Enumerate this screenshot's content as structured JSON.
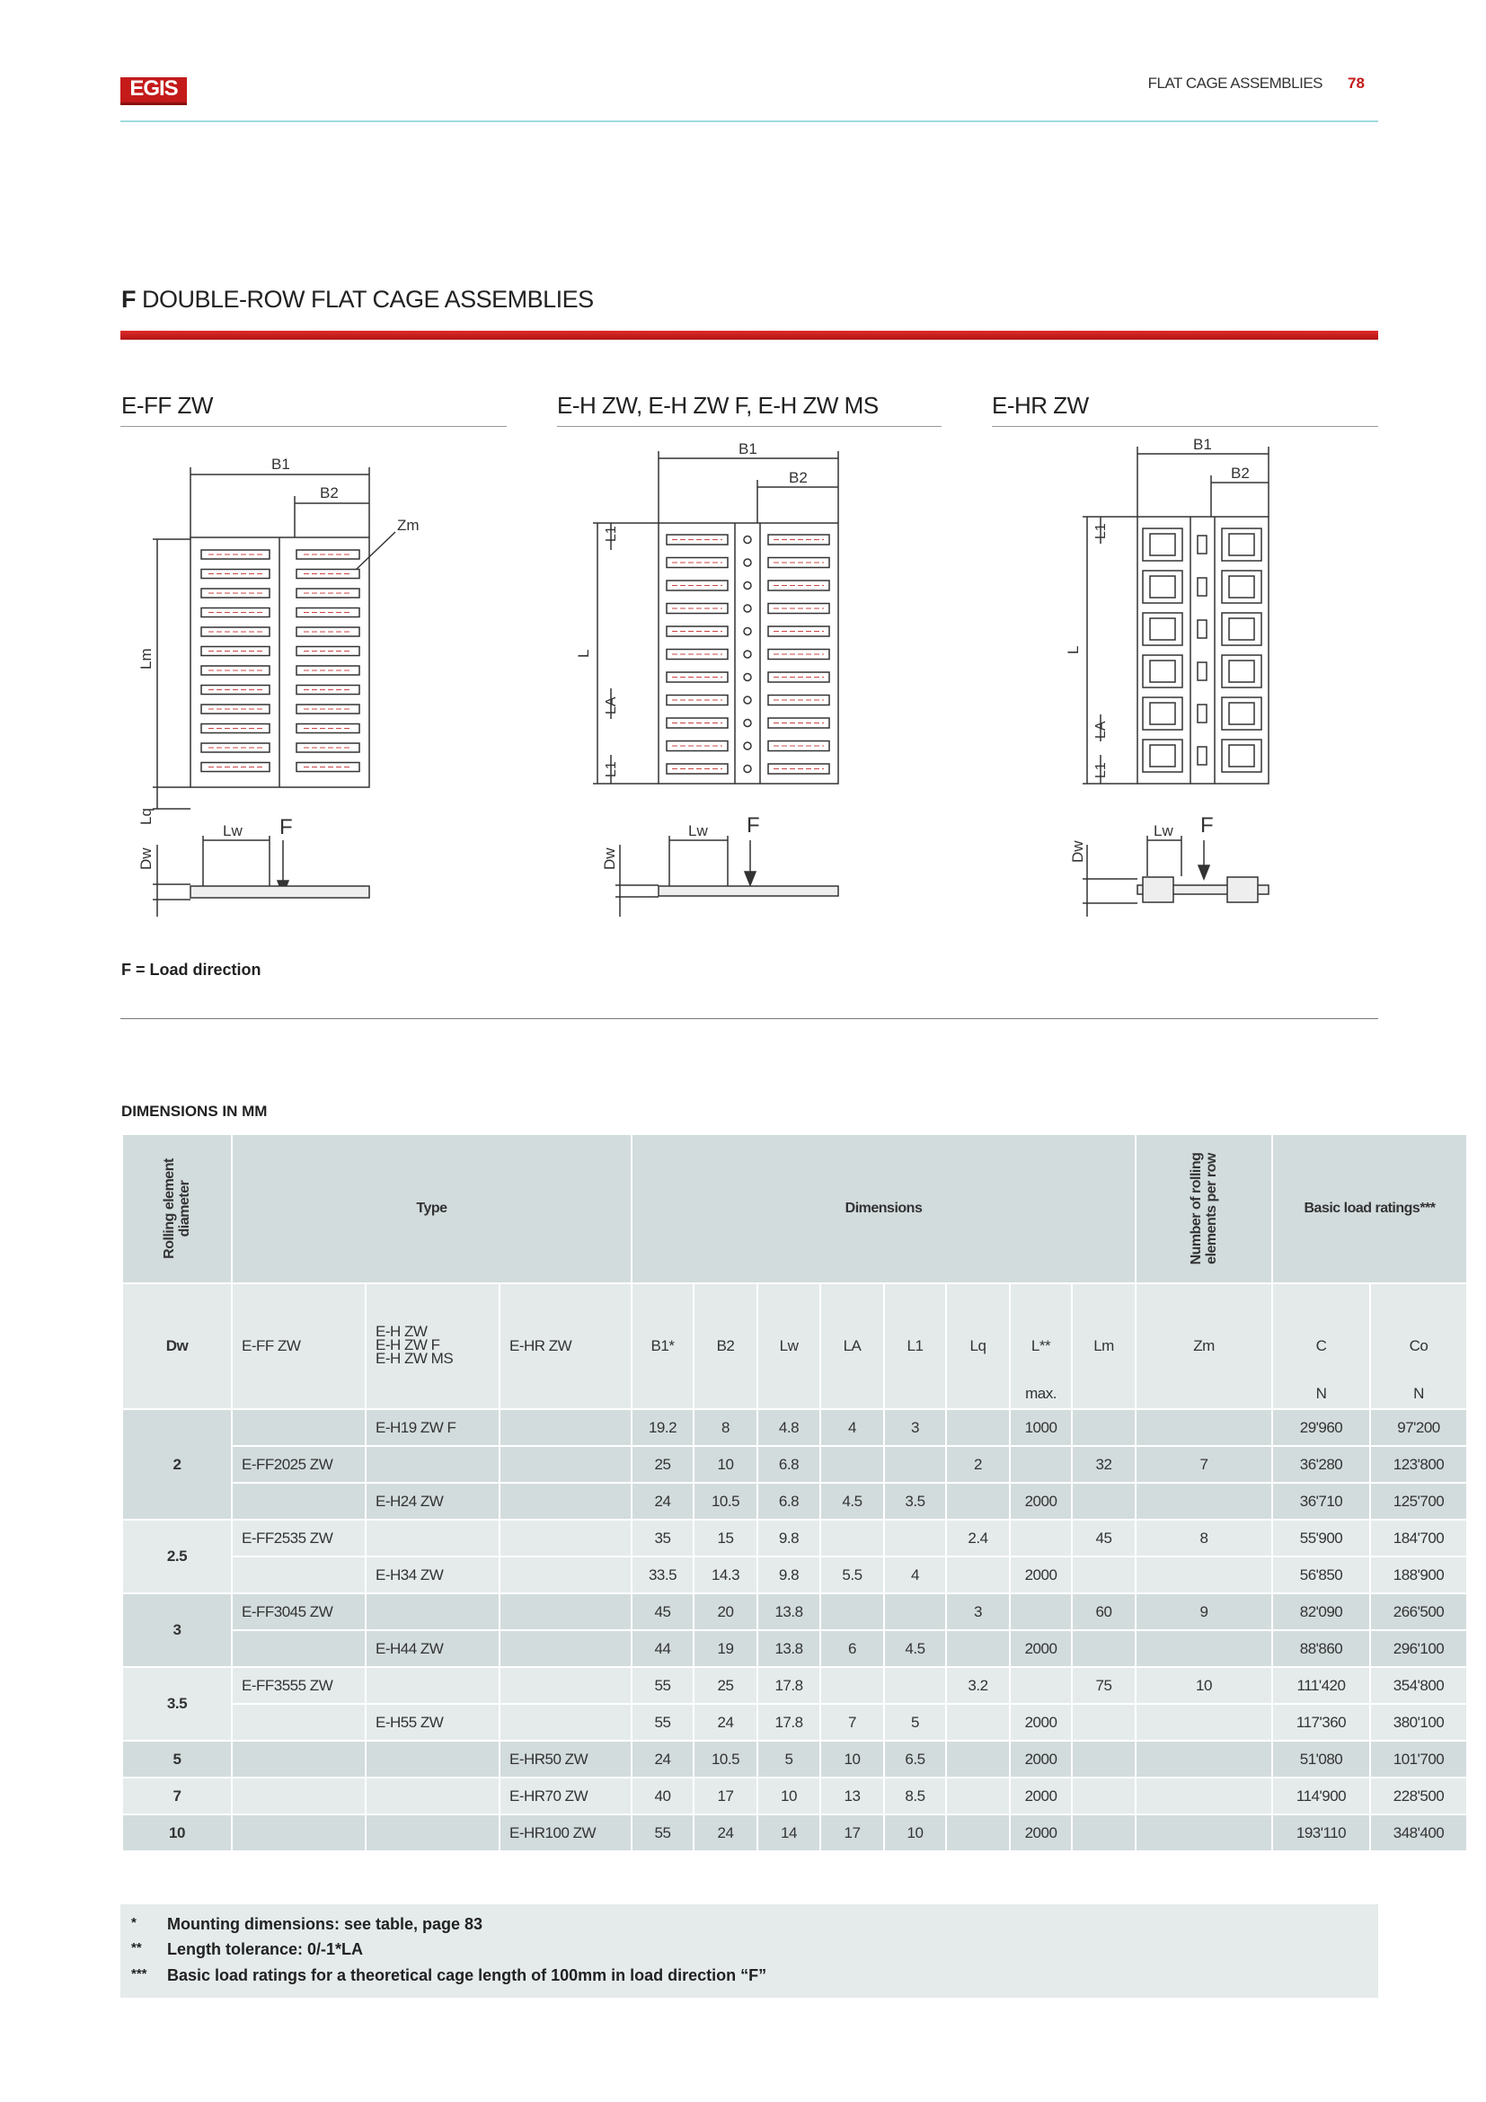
{
  "header": {
    "logo": "EGIS",
    "section": "FLAT CAGE ASSEMBLIES",
    "page": "78"
  },
  "title": {
    "letter": "F",
    "text": "DOUBLE-ROW FLAT CAGE ASSEMBLIES"
  },
  "diagrams": [
    {
      "title": "E-FF ZW",
      "labels": {
        "B1": "B1",
        "B2": "B2",
        "Zm": "Zm",
        "Lm": "Lm",
        "Lq": "Lq",
        "Lw": "Lw",
        "F": "F",
        "Dw": "Dw"
      }
    },
    {
      "title": "E-H ZW, E-H ZW F, E-H ZW MS",
      "labels": {
        "B1": "B1",
        "B2": "B2",
        "L1": "L1",
        "L": "L",
        "LA": "LA",
        "L1b": "L1",
        "Lw": "Lw",
        "F": "F",
        "Dw": "Dw"
      }
    },
    {
      "title": "E-HR ZW",
      "labels": {
        "B1": "B1",
        "B2": "B2",
        "L1": "L1",
        "L": "L",
        "LA": "LA",
        "L1b": "L1",
        "Lw": "Lw",
        "F": "F",
        "Dw": "Dw"
      }
    }
  ],
  "load_note": "F = Load direction",
  "table": {
    "caption": "DIMENSIONS IN MM",
    "groups": {
      "rolling": "Rolling element diameter",
      "type": "Type",
      "dimensions": "Dimensions",
      "number": "Number of rolling elements per row",
      "ratings": "Basic load ratings***"
    },
    "columns": [
      "Dw",
      "E-FF ZW",
      "E-H ZW\nE-H ZW F\nE-H ZW MS",
      "E-HR ZW",
      "B1*",
      "B2",
      "Lw",
      "LA",
      "L1",
      "Lq",
      "L**",
      "Lm",
      "Zm",
      "C",
      "Co"
    ],
    "units": {
      "L": "max.",
      "C": "N",
      "Co": "N"
    },
    "groups_rows": [
      {
        "dw": "2",
        "shade": "dark",
        "rows": [
          [
            "",
            "E-H19 ZW F",
            "",
            "19.2",
            "8",
            "4.8",
            "4",
            "3",
            "",
            "1000",
            "",
            "",
            "29'960",
            "97'200"
          ],
          [
            "E-FF2025 ZW",
            "",
            "",
            "25",
            "10",
            "6.8",
            "",
            "",
            "2",
            "",
            "32",
            "7",
            "36'280",
            "123'800"
          ],
          [
            "",
            "E-H24 ZW",
            "",
            "24",
            "10.5",
            "6.8",
            "4.5",
            "3.5",
            "",
            "2000",
            "",
            "",
            "36'710",
            "125'700"
          ]
        ]
      },
      {
        "dw": "2.5",
        "shade": "light",
        "rows": [
          [
            "E-FF2535 ZW",
            "",
            "",
            "35",
            "15",
            "9.8",
            "",
            "",
            "2.4",
            "",
            "45",
            "8",
            "55'900",
            "184'700"
          ],
          [
            "",
            "E-H34 ZW",
            "",
            "33.5",
            "14.3",
            "9.8",
            "5.5",
            "4",
            "",
            "2000",
            "",
            "",
            "56'850",
            "188'900"
          ]
        ]
      },
      {
        "dw": "3",
        "shade": "dark",
        "rows": [
          [
            "E-FF3045 ZW",
            "",
            "",
            "45",
            "20",
            "13.8",
            "",
            "",
            "3",
            "",
            "60",
            "9",
            "82'090",
            "266'500"
          ],
          [
            "",
            "E-H44 ZW",
            "",
            "44",
            "19",
            "13.8",
            "6",
            "4.5",
            "",
            "2000",
            "",
            "",
            "88'860",
            "296'100"
          ]
        ]
      },
      {
        "dw": "3.5",
        "shade": "light",
        "rows": [
          [
            "E-FF3555 ZW",
            "",
            "",
            "55",
            "25",
            "17.8",
            "",
            "",
            "3.2",
            "",
            "75",
            "10",
            "111'420",
            "354'800"
          ],
          [
            "",
            "E-H55 ZW",
            "",
            "55",
            "24",
            "17.8",
            "7",
            "5",
            "",
            "2000",
            "",
            "",
            "117'360",
            "380'100"
          ]
        ]
      },
      {
        "dw": "5",
        "shade": "dark",
        "rows": [
          [
            "",
            "",
            "E-HR50 ZW",
            "24",
            "10.5",
            "5",
            "10",
            "6.5",
            "",
            "2000",
            "",
            "",
            "51'080",
            "101'700"
          ]
        ]
      },
      {
        "dw": "7",
        "shade": "light",
        "rows": [
          [
            "",
            "",
            "E-HR70 ZW",
            "40",
            "17",
            "10",
            "13",
            "8.5",
            "",
            "2000",
            "",
            "",
            "114'900",
            "228'500"
          ]
        ]
      },
      {
        "dw": "10",
        "shade": "dark",
        "rows": [
          [
            "",
            "",
            "E-HR100 ZW",
            "55",
            "24",
            "14",
            "17",
            "10",
            "",
            "2000",
            "",
            "",
            "193'110",
            "348'400"
          ]
        ]
      }
    ]
  },
  "footnotes": [
    {
      "mark": "*",
      "text": "Mounting dimensions: see table, page 83"
    },
    {
      "mark": "**",
      "text": "Length tolerance: 0/-1*LA"
    },
    {
      "mark": "***",
      "text": "Basic load ratings for a theoretical cage length of 100mm in load direction “F”"
    }
  ],
  "colors": {
    "brand_red": "#c41a1a",
    "header_line": "#9fdcdc",
    "table_dark": "#d3dcdd",
    "table_light": "#e5ebeb"
  }
}
